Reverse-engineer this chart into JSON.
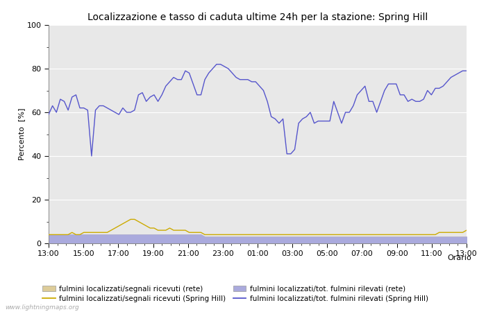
{
  "title": "Localizzazione e tasso di caduta ultime 24h per la stazione: Spring Hill",
  "ylabel": "Percento  [%]",
  "xlabel_right": "Orario",
  "ylim": [
    0,
    100
  ],
  "watermark": "www.lightningmaps.org",
  "xtick_labels": [
    "13:00",
    "15:00",
    "17:00",
    "19:00",
    "21:00",
    "23:00",
    "01:00",
    "03:00",
    "05:00",
    "07:00",
    "09:00",
    "11:00",
    "13:00"
  ],
  "bg_color": "#ffffff",
  "plot_bg_color": "#e8e8e8",
  "grid_color": "#ffffff",
  "blue_line": [
    59,
    63,
    60,
    66,
    65,
    61,
    67,
    68,
    62,
    62,
    61,
    40,
    61,
    63,
    63,
    62,
    61,
    60,
    59,
    62,
    60,
    60,
    61,
    68,
    69,
    65,
    67,
    68,
    65,
    68,
    72,
    74,
    76,
    75,
    75,
    79,
    78,
    73,
    68,
    68,
    75,
    78,
    80,
    82,
    82,
    81,
    80,
    78,
    76,
    75,
    75,
    75,
    74,
    74,
    72,
    70,
    65,
    58,
    57,
    55,
    57,
    41,
    41,
    43,
    55,
    57,
    58,
    60,
    55,
    56,
    56,
    56,
    56,
    65,
    60,
    55,
    60,
    60,
    63,
    68,
    70,
    72,
    65,
    65,
    60,
    65,
    70,
    73,
    73,
    73,
    68,
    68,
    65,
    66,
    65,
    65,
    66,
    70,
    68,
    71,
    71,
    72,
    74,
    76,
    77,
    78,
    79,
    79
  ],
  "orange_line": [
    4,
    4,
    4,
    4,
    4,
    4,
    5,
    4,
    4,
    5,
    5,
    5,
    5,
    5,
    5,
    5,
    6,
    7,
    8,
    9,
    10,
    11,
    11,
    10,
    9,
    8,
    7,
    7,
    6,
    6,
    6,
    7,
    6,
    6,
    6,
    6,
    5,
    5,
    5,
    5,
    4,
    4,
    4,
    4,
    4,
    4,
    4,
    4,
    4,
    4,
    4,
    4,
    4,
    4,
    4,
    4,
    4,
    4,
    4,
    4,
    4,
    4,
    4,
    4,
    4,
    4,
    4,
    4,
    4,
    4,
    4,
    4,
    4,
    4,
    4,
    4,
    4,
    4,
    4,
    4,
    4,
    4,
    4,
    4,
    4,
    4,
    4,
    4,
    4,
    4,
    4,
    4,
    4,
    4,
    4,
    4,
    4,
    4,
    4,
    4,
    5,
    5,
    5,
    5,
    5,
    5,
    5,
    6
  ],
  "rete_orange_fill": [
    4,
    4,
    4,
    4,
    4,
    4,
    4,
    4,
    4,
    4,
    4,
    4,
    4,
    4,
    4,
    4,
    4,
    4,
    4,
    4,
    4,
    4,
    4,
    4,
    4,
    4,
    4,
    4,
    4,
    4,
    4,
    4,
    4,
    4,
    4,
    4,
    4,
    4,
    4,
    4,
    3,
    3,
    3,
    3,
    3,
    3,
    3,
    3,
    3,
    3,
    3,
    3,
    3,
    3,
    3,
    3,
    3,
    3,
    3,
    3,
    3,
    3,
    3,
    3,
    3,
    3,
    3,
    3,
    3,
    3,
    3,
    3,
    3,
    3,
    3,
    3,
    3,
    3,
    3,
    3,
    3,
    3,
    3,
    3,
    3,
    3,
    3,
    3,
    3,
    3,
    3,
    3,
    3,
    3,
    3,
    3,
    3,
    3,
    3,
    3,
    3,
    3,
    3,
    3,
    3,
    3,
    3,
    3
  ],
  "rete_blue_fill": [
    4,
    4,
    4,
    4,
    4,
    4,
    4,
    4,
    4,
    4,
    4,
    4,
    4,
    4,
    4,
    4,
    4,
    4,
    4,
    4,
    4,
    4,
    4,
    4,
    4,
    4,
    4,
    4,
    4,
    4,
    4,
    4,
    4,
    4,
    4,
    4,
    4,
    4,
    4,
    4,
    3,
    3,
    3,
    3,
    3,
    3,
    3,
    3,
    3,
    3,
    3,
    3,
    3,
    3,
    3,
    3,
    3,
    3,
    3,
    3,
    3,
    3,
    3,
    3,
    3,
    3,
    3,
    3,
    3,
    3,
    3,
    3,
    3,
    3,
    3,
    3,
    3,
    3,
    3,
    3,
    3,
    3,
    3,
    3,
    3,
    3,
    3,
    3,
    3,
    3,
    3,
    3,
    3,
    3,
    3,
    3,
    3,
    3,
    3,
    3,
    3,
    3,
    3,
    3,
    3,
    3,
    3,
    3
  ],
  "color_blue_line": "#5555cc",
  "color_orange_line": "#ccaa00",
  "color_blue_fill": "#aaaadd",
  "color_orange_fill": "#ddcc99",
  "title_fontsize": 10,
  "axis_label_fontsize": 8,
  "tick_fontsize": 8,
  "legend_fontsize": 7.5,
  "legend_labels": [
    "fulmini localizzati/segnali ricevuti (rete)",
    "fulmini localizzati/segnali ricevuti (Spring Hill)",
    "fulmini localizzati/tot. fulmini rilevati (rete)",
    "fulmini localizzati/tot. fulmini rilevati (Spring Hill)"
  ]
}
